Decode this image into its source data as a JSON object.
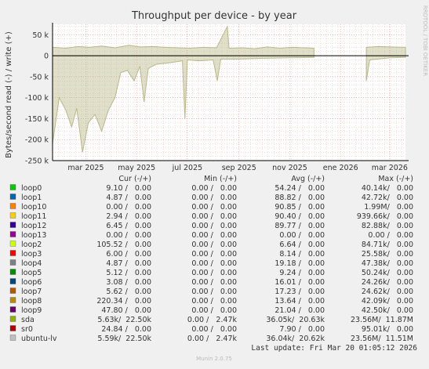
{
  "chart_data": {
    "type": "area",
    "title": "Throughput per device - by year",
    "ylabel": "Bytes/second read (-) / write (+)",
    "side_label": "RRDTOOL / TOBI OETIKER",
    "ylim": [
      -250000,
      75000
    ],
    "y_ticks": [
      {
        "value": 50000,
        "label": "50 k"
      },
      {
        "value": 0,
        "label": "0"
      },
      {
        "value": -50000,
        "label": "-50 k"
      },
      {
        "value": -100000,
        "label": "-100 k"
      },
      {
        "value": -150000,
        "label": "-150 k"
      },
      {
        "value": -200000,
        "label": "-200 k"
      },
      {
        "value": -250000,
        "label": "-250 k"
      }
    ],
    "x_range": [
      "2025-01-20",
      "2026-03-20"
    ],
    "x_ticks": [
      {
        "date": "2025-03-01",
        "label": "mar 2025"
      },
      {
        "date": "2025-05-01",
        "label": "may 2025"
      },
      {
        "date": "2025-07-01",
        "label": "jul 2025"
      },
      {
        "date": "2025-09-01",
        "label": "sep 2025"
      },
      {
        "date": "2025-11-01",
        "label": "nov 2025"
      },
      {
        "date": "2026-01-01",
        "label": "ene 2026"
      },
      {
        "date": "2026-03-01",
        "label": "mar 2026"
      }
    ],
    "grid": true,
    "series": [
      {
        "name": "sda",
        "color": "#b8b98a",
        "gaps": [
          [
            "2025-12-01",
            "2026-01-31"
          ]
        ],
        "write": [
          [
            "2025-01-20",
            20000
          ],
          [
            "2025-02-05",
            18000
          ],
          [
            "2025-02-20",
            22000
          ],
          [
            "2025-03-05",
            20000
          ],
          [
            "2025-03-20",
            23000
          ],
          [
            "2025-04-05",
            19000
          ],
          [
            "2025-04-22",
            25000
          ],
          [
            "2025-05-05",
            21000
          ],
          [
            "2025-05-20",
            22000
          ],
          [
            "2025-06-05",
            20000
          ],
          [
            "2025-06-20",
            19000
          ],
          [
            "2025-07-05",
            18000
          ],
          [
            "2025-07-20",
            20000
          ],
          [
            "2025-08-05",
            19000
          ],
          [
            "2025-08-18",
            70000
          ],
          [
            "2025-08-20",
            18000
          ],
          [
            "2025-09-05",
            19000
          ],
          [
            "2025-09-20",
            17000
          ],
          [
            "2025-10-05",
            21000
          ],
          [
            "2025-10-20",
            18000
          ],
          [
            "2025-11-05",
            20000
          ],
          [
            "2025-11-30",
            18000
          ],
          [
            "2026-02-01",
            20000
          ],
          [
            "2026-02-15",
            22000
          ],
          [
            "2026-03-01",
            21000
          ],
          [
            "2026-03-20",
            20000
          ]
        ],
        "read": [
          [
            "2025-01-20",
            -210000
          ],
          [
            "2025-01-28",
            -100000
          ],
          [
            "2025-02-05",
            -130000
          ],
          [
            "2025-02-12",
            -170000
          ],
          [
            "2025-02-18",
            -125000
          ],
          [
            "2025-02-25",
            -230000
          ],
          [
            "2025-03-04",
            -160000
          ],
          [
            "2025-03-12",
            -140000
          ],
          [
            "2025-03-20",
            -180000
          ],
          [
            "2025-03-28",
            -130000
          ],
          [
            "2025-04-05",
            -100000
          ],
          [
            "2025-04-12",
            -40000
          ],
          [
            "2025-04-20",
            -35000
          ],
          [
            "2025-04-28",
            -60000
          ],
          [
            "2025-05-05",
            -25000
          ],
          [
            "2025-05-10",
            -110000
          ],
          [
            "2025-05-15",
            -30000
          ],
          [
            "2025-05-25",
            -20000
          ],
          [
            "2025-06-05",
            -18000
          ],
          [
            "2025-06-15",
            -15000
          ],
          [
            "2025-06-25",
            -12000
          ],
          [
            "2025-06-28",
            -150000
          ],
          [
            "2025-07-01",
            -10000
          ],
          [
            "2025-07-15",
            -12000
          ],
          [
            "2025-08-01",
            -10000
          ],
          [
            "2025-08-06",
            -60000
          ],
          [
            "2025-08-10",
            -8000
          ],
          [
            "2025-09-01",
            -8000
          ],
          [
            "2025-10-01",
            -6000
          ],
          [
            "2025-11-01",
            -5000
          ],
          [
            "2025-11-30",
            -4000
          ],
          [
            "2026-02-01",
            -60000
          ],
          [
            "2026-02-05",
            -10000
          ],
          [
            "2026-03-01",
            -5000
          ],
          [
            "2026-03-20",
            -4000
          ]
        ]
      }
    ],
    "legend_columns": [
      "Cur (-/+)",
      "Min (-/+)",
      "Avg (-/+)",
      "Max (-/+)"
    ],
    "legend": [
      {
        "name": "loop0",
        "color": "#00cc00",
        "cur": "9.10 /   0.00",
        "min": "0.00 /   0.00",
        "avg": "54.24 /   0.00",
        "max": "40.14k/   0.00"
      },
      {
        "name": "loop1",
        "color": "#0066b3",
        "cur": "4.87 /   0.00",
        "min": "0.00 /   0.00",
        "avg": "88.82 /   0.00",
        "max": "42.72k/   0.00"
      },
      {
        "name": "loop10",
        "color": "#ff8000",
        "cur": "0.00 /   0.00",
        "min": "0.00 /   0.00",
        "avg": "90.85 /   0.00",
        "max": "1.99M/   0.00"
      },
      {
        "name": "loop11",
        "color": "#ffcc00",
        "cur": "2.94 /   0.00",
        "min": "0.00 /   0.00",
        "avg": "90.40 /   0.00",
        "max": "939.66k/   0.00"
      },
      {
        "name": "loop12",
        "color": "#330099",
        "cur": "6.45 /   0.00",
        "min": "0.00 /   0.00",
        "avg": "89.77 /   0.00",
        "max": "82.88k/   0.00"
      },
      {
        "name": "loop13",
        "color": "#990099",
        "cur": "0.00 /   0.00",
        "min": "0.00 /   0.00",
        "avg": "0.00 /   0.00",
        "max": "0.00 /   0.00"
      },
      {
        "name": "loop2",
        "color": "#ccff00",
        "cur": "105.52 /   0.00",
        "min": "0.00 /   0.00",
        "avg": "6.64 /   0.00",
        "max": "84.71k/   0.00"
      },
      {
        "name": "loop3",
        "color": "#ff0000",
        "cur": "6.00 /   0.00",
        "min": "0.00 /   0.00",
        "avg": "8.14 /   0.00",
        "max": "25.58k/   0.00"
      },
      {
        "name": "loop4",
        "color": "#808080",
        "cur": "4.87 /   0.00",
        "min": "0.00 /   0.00",
        "avg": "19.18 /   0.00",
        "max": "47.38k/   0.00"
      },
      {
        "name": "loop5",
        "color": "#008f00",
        "cur": "5.12 /   0.00",
        "min": "0.00 /   0.00",
        "avg": "9.24 /   0.00",
        "max": "50.24k/   0.00"
      },
      {
        "name": "loop6",
        "color": "#00487d",
        "cur": "3.08 /   0.00",
        "min": "0.00 /   0.00",
        "avg": "16.01 /   0.00",
        "max": "24.26k/   0.00"
      },
      {
        "name": "loop7",
        "color": "#b35a00",
        "cur": "5.62 /   0.00",
        "min": "0.00 /   0.00",
        "avg": "17.23 /   0.00",
        "max": "24.62k/   0.00"
      },
      {
        "name": "loop8",
        "color": "#b38f00",
        "cur": "220.34 /   0.00",
        "min": "0.00 /   0.00",
        "avg": "13.64 /   0.00",
        "max": "42.09k/   0.00"
      },
      {
        "name": "loop9",
        "color": "#6b006b",
        "cur": "47.80 /   0.00",
        "min": "0.00 /   0.00",
        "avg": "21.04 /   0.00",
        "max": "42.50k/   0.00"
      },
      {
        "name": "sda",
        "color": "#8fb300",
        "cur": "5.63k/  22.50k",
        "min": "0.00 /   2.47k",
        "avg": "36.05k/  20.63k",
        "max": "23.56M/  11.87M"
      },
      {
        "name": "sr0",
        "color": "#b30000",
        "cur": "24.84 /   0.00",
        "min": "0.00 /   0.00",
        "avg": "7.90 /   0.00",
        "max": "95.01k/   0.00"
      },
      {
        "name": "ubuntu-lv",
        "color": "#bebebe",
        "cur": "5.59k/  22.50k",
        "min": "0.00 /   2.47k",
        "avg": "36.04k/  20.62k",
        "max": "23.56M/  11.51M"
      }
    ],
    "last_update": "Last update: Fri Mar 20 01:05:12 2026",
    "footer": "Munin 2.0.75"
  }
}
